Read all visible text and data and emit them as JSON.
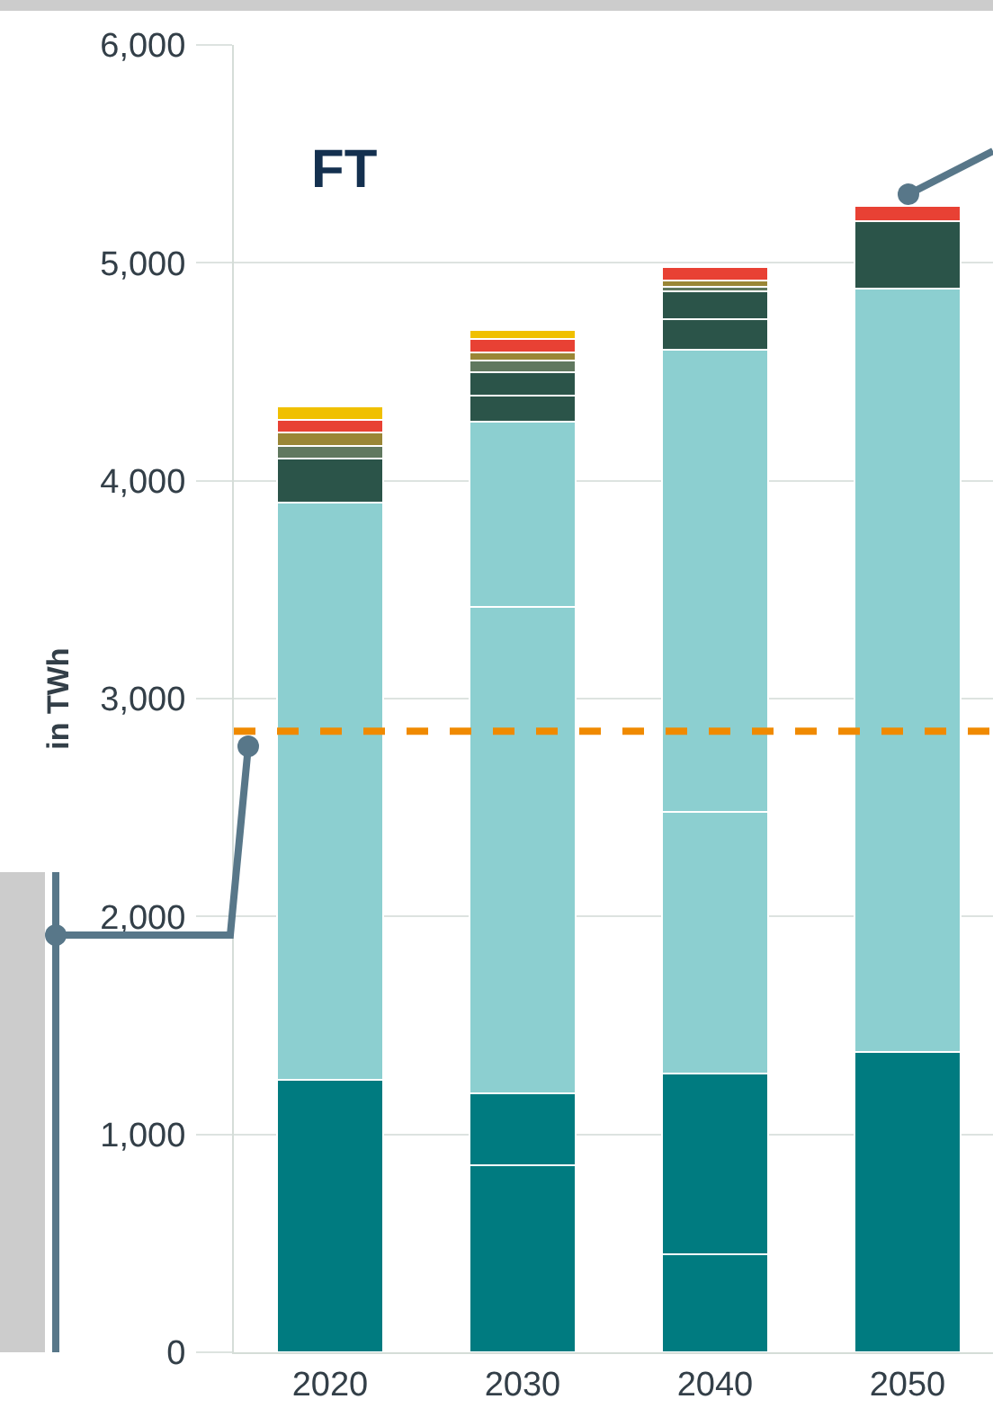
{
  "chart_data": {
    "type": "bar",
    "stacked": true,
    "annotations": [
      "FT"
    ],
    "ylabel": "in TWh",
    "categories": [
      "2020",
      "2030",
      "2040",
      "2050"
    ],
    "series": [
      {
        "color": "#007b80",
        "values": [
          1250,
          860,
          450,
          null
        ]
      },
      {
        "color": "#007b80",
        "values": [
          null,
          330,
          830,
          1380
        ]
      },
      {
        "color": "#8ccfd0",
        "values": [
          2650,
          2230,
          1200,
          null
        ]
      },
      {
        "color": "#8ccfd0",
        "values": [
          null,
          850,
          2120,
          3500
        ]
      },
      {
        "color": "#2b5449",
        "values": [
          200,
          120,
          140,
          null
        ]
      },
      {
        "color": "#2b5449",
        "values": [
          null,
          110,
          130,
          310
        ]
      },
      {
        "color": "#60785f",
        "values": [
          60,
          50,
          20,
          null
        ]
      },
      {
        "color": "#9a8636",
        "values": [
          60,
          40,
          30,
          null
        ]
      },
      {
        "color": "#e84134",
        "values": [
          60,
          60,
          60,
          70
        ]
      },
      {
        "color": "#f0c000",
        "values": [
          60,
          40,
          null,
          null
        ]
      }
    ],
    "ylim": [
      0,
      6000
    ],
    "yticks": [
      {
        "value": 0,
        "label": "0"
      },
      {
        "value": 1000,
        "label": "1,000"
      },
      {
        "value": 2000,
        "label": "2,000"
      },
      {
        "value": 3000,
        "label": "3,000"
      },
      {
        "value": 4000,
        "label": "4,000"
      },
      {
        "value": 5000,
        "label": "5,000"
      },
      {
        "value": 6000,
        "label": "6,000"
      }
    ],
    "ref_lines": [
      {
        "axis": "y",
        "value": 2850,
        "color": "#f08a00",
        "line_style": "dashed"
      }
    ],
    "grid": "y"
  }
}
